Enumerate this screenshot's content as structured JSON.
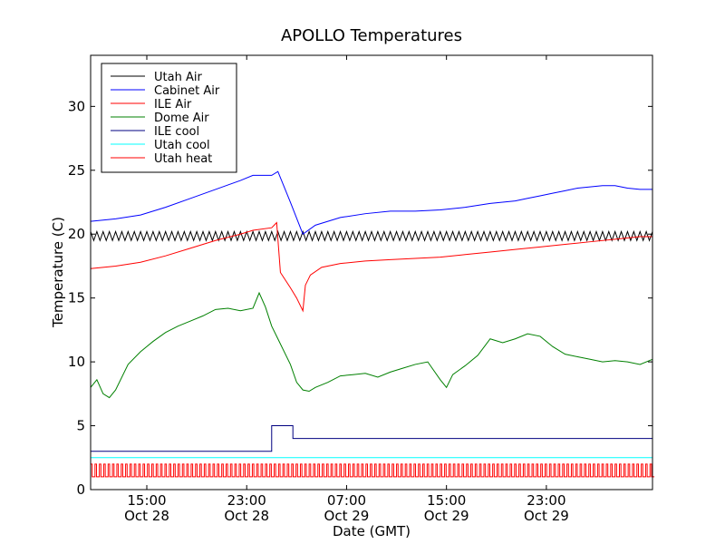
{
  "chart_data": {
    "type": "line",
    "title": "APOLLO Temperatures",
    "xlabel": "Date (GMT)",
    "ylabel": "Temperature (C)",
    "xlim": [
      0,
      45
    ],
    "ylim": [
      0,
      34
    ],
    "x_unit": "hours since Oct 28 10:30 GMT",
    "xticks": [
      {
        "x": 4.5,
        "time": "15:00",
        "date": "Oct 28"
      },
      {
        "x": 12.5,
        "time": "23:00",
        "date": "Oct 28"
      },
      {
        "x": 20.5,
        "time": "07:00",
        "date": "Oct 29"
      },
      {
        "x": 28.5,
        "time": "15:00",
        "date": "Oct 29"
      },
      {
        "x": 36.5,
        "time": "23:00",
        "date": "Oct 29"
      }
    ],
    "yticks": [
      "0",
      "5",
      "10",
      "15",
      "20",
      "25",
      "30"
    ],
    "legend_position": "top-left",
    "series": [
      {
        "name": "Utah Air",
        "color": "#000000",
        "style": "sawtooth",
        "low": 19.5,
        "high": 20.2,
        "period": 0.5
      },
      {
        "name": "Cabinet Air",
        "color": "#0000ff",
        "x": [
          0,
          2,
          4,
          6,
          8,
          10,
          12,
          13,
          14.5,
          15,
          16,
          17,
          18,
          20,
          22,
          24,
          26,
          28,
          30,
          32,
          34,
          35,
          36,
          37,
          37.5,
          38,
          39,
          40,
          41,
          42,
          43,
          44,
          45
        ],
        "y": [
          21.0,
          21.2,
          21.5,
          22.1,
          22.8,
          23.5,
          24.2,
          24.6,
          24.6,
          24.9,
          22.5,
          20.0,
          20.7,
          21.3,
          21.6,
          21.8,
          21.8,
          21.9,
          22.1,
          22.4,
          22.6,
          22.8,
          23.0,
          23.2,
          23.3,
          23.4,
          23.6,
          23.7,
          23.8,
          23.8,
          23.6,
          23.5,
          23.5
        ]
      },
      {
        "name": "ILE Air",
        "color": "#ff0000",
        "x": [
          0,
          2,
          4,
          6,
          8,
          10,
          12,
          13,
          14.5,
          14.7,
          14.9,
          15.2,
          16,
          16.5,
          17,
          17.2,
          17.6,
          18.5,
          20,
          22,
          24,
          26,
          28,
          30,
          32,
          34,
          36,
          38,
          40,
          42,
          44,
          45
        ],
        "y": [
          17.3,
          17.5,
          17.8,
          18.3,
          18.9,
          19.5,
          20.0,
          20.3,
          20.5,
          20.7,
          20.9,
          17.0,
          15.8,
          15.0,
          14.0,
          16.0,
          16.8,
          17.4,
          17.7,
          17.9,
          18.0,
          18.1,
          18.2,
          18.4,
          18.6,
          18.8,
          19.0,
          19.2,
          19.4,
          19.6,
          19.8,
          19.8
        ]
      },
      {
        "name": "Dome Air",
        "color": "#008000",
        "x": [
          0,
          0.5,
          1,
          1.5,
          2,
          3,
          4,
          5,
          6,
          7,
          8,
          9,
          10,
          11,
          12,
          13,
          13.5,
          14,
          14.5,
          15,
          16,
          16.5,
          17,
          17.5,
          18,
          19,
          20,
          21,
          22,
          23,
          24,
          25,
          26,
          27,
          28,
          28.5,
          29,
          30,
          31,
          32,
          33,
          34,
          35,
          36,
          37,
          38,
          39,
          40,
          41,
          42,
          43,
          44,
          45
        ],
        "y": [
          8.0,
          8.6,
          7.5,
          7.2,
          7.8,
          9.8,
          10.8,
          11.6,
          12.3,
          12.8,
          13.2,
          13.6,
          14.1,
          14.2,
          14.0,
          14.2,
          15.4,
          14.3,
          12.8,
          11.8,
          9.8,
          8.4,
          7.8,
          7.7,
          8.0,
          8.4,
          8.9,
          9.0,
          9.1,
          8.8,
          9.2,
          9.5,
          9.8,
          10.0,
          8.6,
          8.0,
          9.0,
          9.7,
          10.5,
          11.8,
          11.5,
          11.8,
          12.2,
          12.0,
          11.2,
          10.6,
          10.4,
          10.2,
          10.0,
          10.1,
          10.0,
          9.8,
          10.2
        ]
      },
      {
        "name": "ILE cool",
        "color": "#000080",
        "x": [
          0,
          14.5,
          14.5,
          16.2,
          16.2,
          45
        ],
        "y": [
          3.0,
          3.0,
          5.0,
          5.0,
          4.0,
          4.0
        ]
      },
      {
        "name": "Utah cool",
        "color": "#00ffff",
        "x": [
          0,
          45
        ],
        "y": [
          2.5,
          2.5
        ]
      },
      {
        "name": "Utah heat",
        "color": "#ff0000",
        "style": "pulse",
        "low": 1.0,
        "high": 2.0,
        "period": 0.35
      }
    ]
  }
}
